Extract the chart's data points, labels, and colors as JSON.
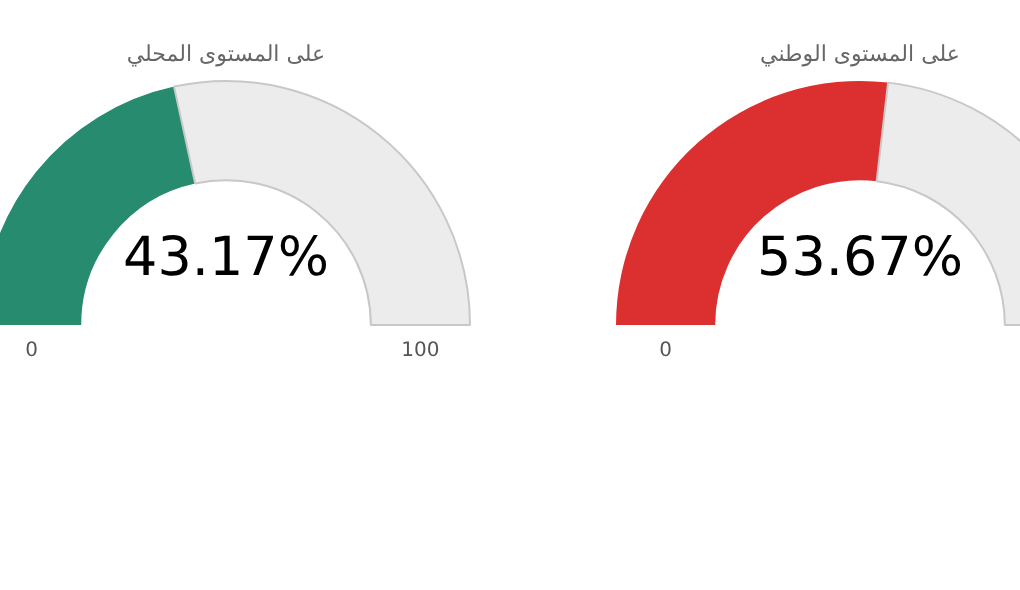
{
  "chart_data": [
    {
      "type": "donut",
      "title": "على المستوى المحلي",
      "categories": [
        null,
        null
      ],
      "values": [
        43.17,
        56.83
      ],
      "colors": [
        "#268b6f",
        "#ececec"
      ],
      "annotations": [
        "43.17%",
        "0",
        "100"
      ]
    },
    {
      "type": "donut",
      "title": "على المستوى الوطني",
      "categories": [
        null,
        null
      ],
      "values": [
        53.67,
        46.33
      ],
      "colors": [
        "#dc3030",
        "#ececec"
      ],
      "annotations": [
        "53.67%",
        "0"
      ]
    }
  ]
}
